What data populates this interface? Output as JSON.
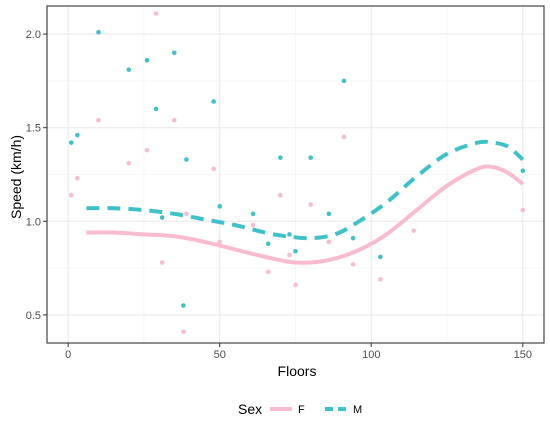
{
  "chart_data": {
    "type": "scatter",
    "title": "",
    "xlabel": "Floors",
    "ylabel": "Speed (km/h)",
    "xlim": [
      -7,
      157
    ],
    "ylim": [
      0.35,
      2.15
    ],
    "xticks": [
      0,
      50,
      100,
      150
    ],
    "yticks": [
      0.5,
      1.0,
      1.5,
      2.0
    ],
    "xtick_labels": [
      "0",
      "50",
      "100",
      "150"
    ],
    "ytick_labels": [
      "0.5",
      "1.0",
      "1.5",
      "2.0"
    ],
    "grid": true,
    "legend": {
      "title": "Sex",
      "position": "bottom",
      "entries": [
        "F",
        "M"
      ]
    },
    "series": [
      {
        "name": "F",
        "color": "#F8BBD0",
        "points": [
          [
            1,
            1.14
          ],
          [
            3,
            1.23
          ],
          [
            10,
            1.54
          ],
          [
            20,
            1.31
          ],
          [
            26,
            1.38
          ],
          [
            29,
            2.11
          ],
          [
            31,
            0.78
          ],
          [
            35,
            1.54
          ],
          [
            38,
            0.41
          ],
          [
            39,
            1.04
          ],
          [
            48,
            1.28
          ],
          [
            50,
            0.89
          ],
          [
            61,
            0.98
          ],
          [
            66,
            0.73
          ],
          [
            70,
            1.14
          ],
          [
            73,
            0.82
          ],
          [
            75,
            0.66
          ],
          [
            80,
            1.09
          ],
          [
            86,
            0.89
          ],
          [
            91,
            1.45
          ],
          [
            94,
            0.77
          ],
          [
            103,
            0.69
          ],
          [
            114,
            0.95
          ],
          [
            150,
            1.06
          ]
        ],
        "smooth": [
          [
            6,
            0.94
          ],
          [
            15,
            0.94
          ],
          [
            25,
            0.93
          ],
          [
            35,
            0.92
          ],
          [
            45,
            0.89
          ],
          [
            55,
            0.85
          ],
          [
            65,
            0.81
          ],
          [
            75,
            0.78
          ],
          [
            85,
            0.79
          ],
          [
            95,
            0.84
          ],
          [
            105,
            0.93
          ],
          [
            115,
            1.06
          ],
          [
            125,
            1.19
          ],
          [
            135,
            1.28
          ],
          [
            140,
            1.29
          ],
          [
            145,
            1.26
          ],
          [
            150,
            1.2
          ]
        ]
      },
      {
        "name": "M",
        "color": "#3EC1C9",
        "points": [
          [
            1,
            1.42
          ],
          [
            3,
            1.46
          ],
          [
            10,
            2.01
          ],
          [
            20,
            1.81
          ],
          [
            26,
            1.86
          ],
          [
            29,
            1.6
          ],
          [
            31,
            1.02
          ],
          [
            35,
            1.9
          ],
          [
            38,
            0.55
          ],
          [
            39,
            1.33
          ],
          [
            48,
            1.64
          ],
          [
            50,
            1.08
          ],
          [
            61,
            1.04
          ],
          [
            66,
            0.88
          ],
          [
            70,
            1.34
          ],
          [
            73,
            0.93
          ],
          [
            75,
            0.84
          ],
          [
            80,
            1.34
          ],
          [
            86,
            1.04
          ],
          [
            91,
            1.75
          ],
          [
            94,
            0.91
          ],
          [
            103,
            0.81
          ],
          [
            150,
            1.27
          ]
        ],
        "smooth": [
          [
            6,
            1.07
          ],
          [
            15,
            1.07
          ],
          [
            25,
            1.06
          ],
          [
            35,
            1.04
          ],
          [
            45,
            1.01
          ],
          [
            55,
            0.98
          ],
          [
            65,
            0.94
          ],
          [
            72,
            0.92
          ],
          [
            80,
            0.91
          ],
          [
            88,
            0.93
          ],
          [
            95,
            0.99
          ],
          [
            105,
            1.1
          ],
          [
            115,
            1.24
          ],
          [
            125,
            1.36
          ],
          [
            135,
            1.42
          ],
          [
            140,
            1.42
          ],
          [
            145,
            1.4
          ],
          [
            150,
            1.33
          ]
        ]
      }
    ]
  }
}
